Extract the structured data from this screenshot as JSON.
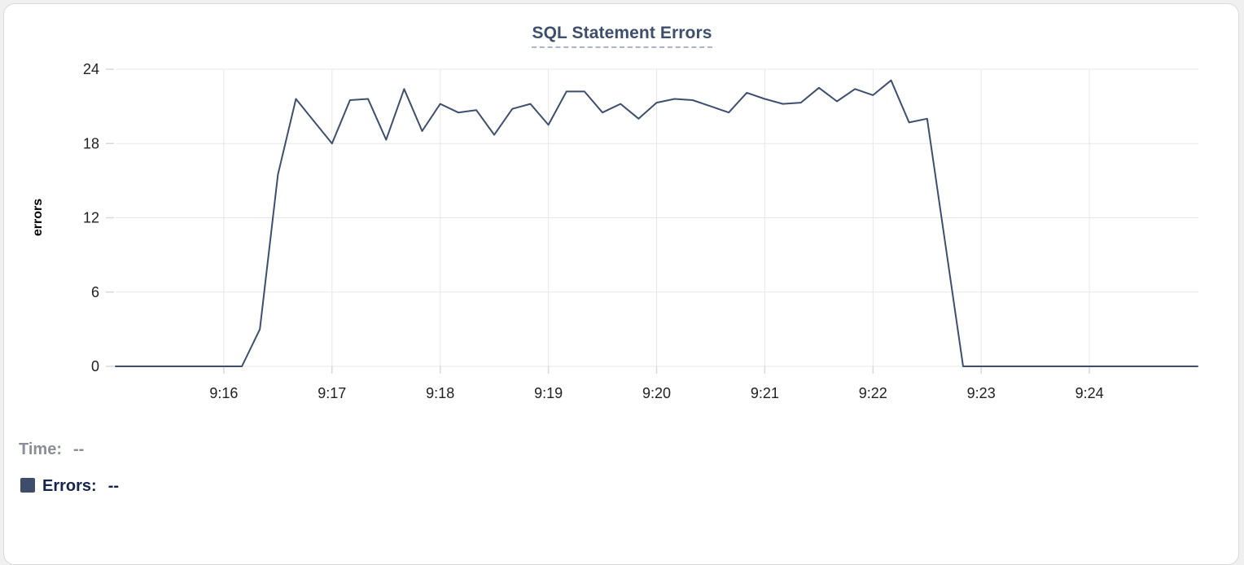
{
  "panel": {
    "title": "SQL Statement Errors"
  },
  "chart_data": {
    "type": "line",
    "title": "SQL Statement Errors",
    "xlabel": "",
    "ylabel": "errors",
    "x_start": "9:15:00",
    "x_end": "9:25:00",
    "interval_seconds": 10,
    "x_tick_labels": [
      "9:16",
      "9:17",
      "9:18",
      "9:19",
      "9:20",
      "9:21",
      "9:22",
      "9:23",
      "9:24"
    ],
    "y_ticks": [
      0,
      6,
      12,
      18,
      24
    ],
    "ylim": [
      0,
      24
    ],
    "grid": true,
    "legend_position": "bottom-left",
    "series": [
      {
        "name": "Errors",
        "color": "#3e4f6e",
        "values": [
          0,
          0,
          0,
          0,
          0,
          0,
          0,
          0,
          3,
          15.5,
          21.6,
          19.8,
          18,
          21.5,
          21.6,
          18.3,
          22.4,
          19,
          21.2,
          20.5,
          20.7,
          18.7,
          20.8,
          21.2,
          19.5,
          22.2,
          22.2,
          20.5,
          21.2,
          20,
          21.3,
          21.6,
          21.5,
          21,
          20.5,
          22.1,
          21.6,
          21.2,
          21.3,
          22.5,
          21.4,
          22.4,
          21.9,
          23.1,
          19.7,
          20,
          10,
          0,
          0,
          0,
          0,
          0,
          0,
          0,
          0,
          0,
          0,
          0,
          0,
          0,
          0
        ]
      }
    ]
  },
  "readout": {
    "time_label": "Time:",
    "time_value": "--",
    "errors_label": "Errors:",
    "errors_value": "--",
    "errors_swatch_color": "#3d4d6a"
  },
  "colors": {
    "accent": "#3e4f6e",
    "grid": "#e7e7e7",
    "tick": "#d9d9d9",
    "tick_text": "#212121",
    "title_underline": "#a9b6cd",
    "muted_text": "#8b8e96",
    "legend_text": "#16254e",
    "card_border": "#d9d9d9",
    "page_bg": "#f0f0f0",
    "card_bg": "#ffffff"
  }
}
